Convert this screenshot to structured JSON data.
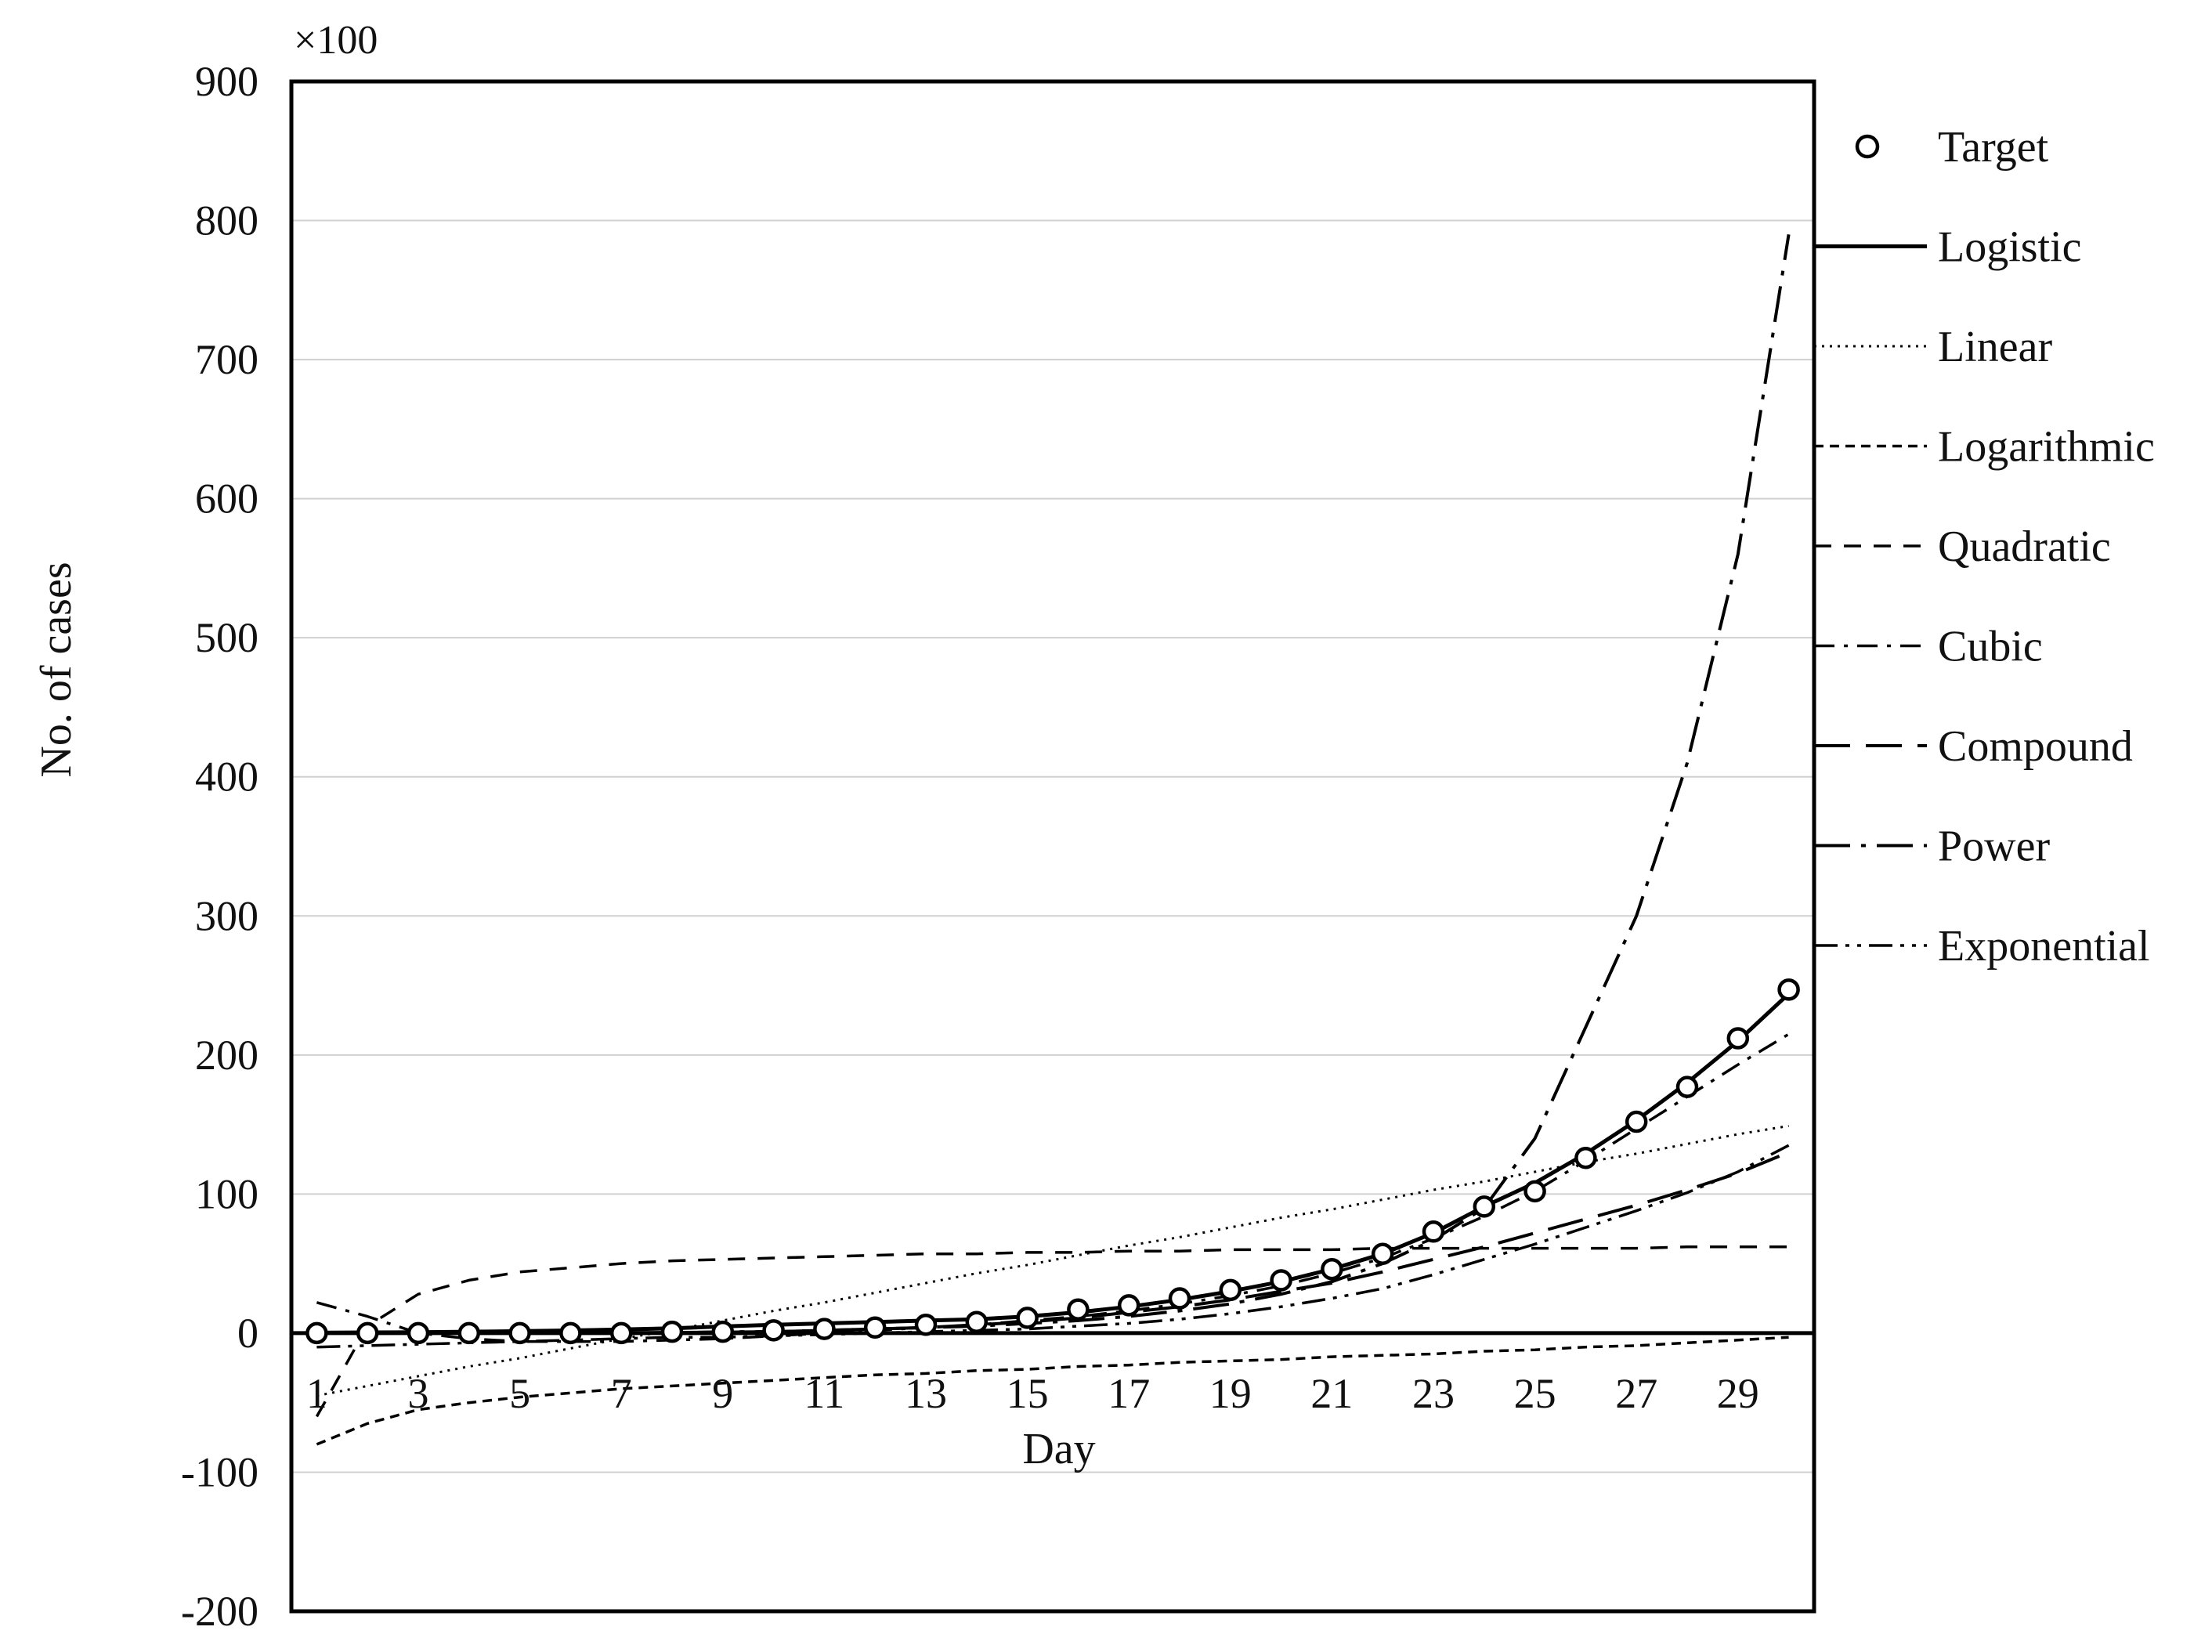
{
  "chart_data": {
    "type": "line",
    "multiplier_label": "×100",
    "xlabel": "Day",
    "ylabel": "No. of cases",
    "ylim": [
      -200,
      900
    ],
    "yticks": [
      -200,
      -100,
      0,
      100,
      200,
      300,
      400,
      500,
      600,
      700,
      800,
      900
    ],
    "xlim": [
      0.5,
      30.5
    ],
    "xticks": [
      1,
      3,
      5,
      7,
      9,
      11,
      13,
      15,
      17,
      19,
      21,
      23,
      25,
      27,
      29
    ],
    "grid": "horizontal",
    "legend_position": "right",
    "x": [
      1,
      2,
      3,
      4,
      5,
      6,
      7,
      8,
      9,
      10,
      11,
      12,
      13,
      14,
      15,
      16,
      17,
      18,
      19,
      20,
      21,
      22,
      23,
      24,
      25,
      26,
      27,
      28,
      29,
      30
    ],
    "series": [
      {
        "name": "Target",
        "style": "markers",
        "color": "#000000",
        "values": [
          0,
          0,
          0,
          0,
          0,
          0,
          0,
          1,
          1,
          2,
          3,
          4,
          6,
          8,
          11,
          17,
          20,
          25,
          31,
          38,
          46,
          57,
          73,
          91,
          102,
          126,
          152,
          177,
          212,
          247
        ]
      },
      {
        "name": "Logistic",
        "style": "solid",
        "color": "#000000",
        "values": [
          0.3,
          0.5,
          0.7,
          1,
          1.4,
          1.9,
          2.6,
          3.5,
          4.8,
          6,
          7,
          8,
          9,
          10,
          12,
          15,
          19,
          24,
          30,
          37,
          46,
          57,
          72,
          91,
          108,
          129,
          153,
          180,
          210,
          244
        ]
      },
      {
        "name": "Linear",
        "style": "dotted",
        "color": "#000000",
        "values": [
          -45,
          -38,
          -31,
          -24,
          -18,
          -11,
          -4,
          2,
          9,
          16,
          22,
          29,
          36,
          43,
          49,
          56,
          63,
          69,
          76,
          83,
          89,
          96,
          103,
          109,
          116,
          123,
          129,
          136,
          143,
          149
        ]
      },
      {
        "name": "Logarithmic",
        "style": "dense-dash",
        "color": "#000000",
        "values": [
          -80,
          -65,
          -55,
          -50,
          -46,
          -43,
          -40,
          -38,
          -36,
          -34,
          -32,
          -30,
          -29,
          -27,
          -26,
          -24,
          -23,
          -21,
          -20,
          -19,
          -17,
          -16,
          -15,
          -13,
          -12,
          -10,
          -9,
          -7,
          -5,
          -3
        ]
      },
      {
        "name": "Quadratic",
        "style": "dash",
        "color": "#000000",
        "values": [
          -60,
          5,
          28,
          38,
          44,
          47,
          50,
          52,
          53,
          54,
          55,
          56,
          57,
          57,
          58,
          58,
          59,
          59,
          60,
          60,
          60,
          61,
          61,
          61,
          61,
          61,
          61,
          62,
          62,
          62
        ]
      },
      {
        "name": "Cubic",
        "style": "dash-dot",
        "color": "#000000",
        "values": [
          22,
          12,
          0,
          -4,
          -6,
          -6,
          -6,
          -5,
          -4,
          -2,
          0,
          2,
          4,
          6,
          9,
          12,
          16,
          21,
          27,
          34,
          43,
          54,
          68,
          84,
          102,
          124,
          147,
          170,
          193,
          215
        ]
      },
      {
        "name": "Compound",
        "style": "long-dash",
        "color": "#000000",
        "values": [
          0,
          0,
          0,
          0.1,
          0.1,
          0.2,
          0.3,
          0.5,
          0.7,
          1,
          2,
          3,
          4,
          6,
          8,
          11,
          15,
          19,
          24,
          30,
          36,
          44,
          53,
          62,
          72,
          82,
          92,
          103,
          115,
          130
        ]
      },
      {
        "name": "Power",
        "style": "long-dash-dot",
        "color": "#000000",
        "values": [
          0,
          0,
          0,
          0,
          0,
          0,
          0,
          0,
          1,
          1,
          2,
          3,
          4,
          5,
          7,
          9,
          12,
          16,
          21,
          28,
          37,
          50,
          67,
          90,
          140,
          220,
          300,
          410,
          560,
          790
        ]
      },
      {
        "name": "Exponential",
        "style": "dash-dot-dot",
        "color": "#000000",
        "values": [
          -10,
          -9,
          -8,
          -7,
          -6,
          -5,
          -4,
          -3,
          -3,
          -2,
          -1,
          0,
          1,
          2,
          3,
          5,
          7,
          10,
          14,
          19,
          25,
          32,
          42,
          53,
          64,
          76,
          88,
          101,
          116,
          135
        ]
      }
    ]
  }
}
